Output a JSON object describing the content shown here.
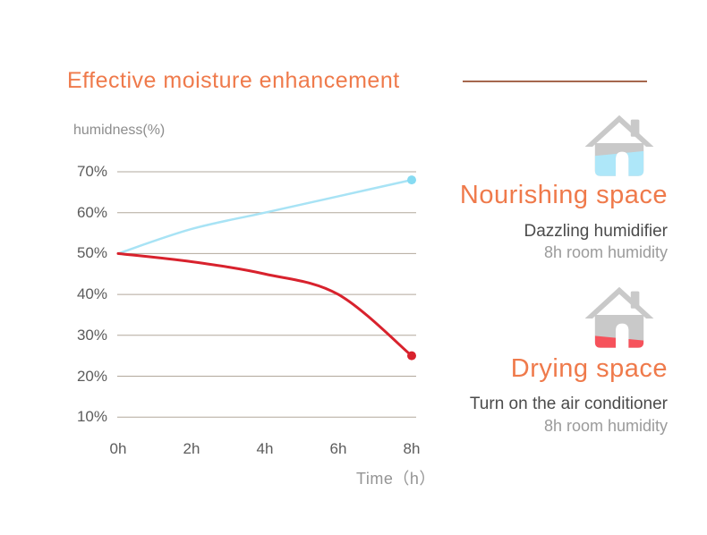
{
  "title": "Effective moisture enhancement",
  "chart_data": {
    "type": "line",
    "x": [
      0,
      2,
      4,
      6,
      8
    ],
    "x_tick_labels": [
      "0h",
      "2h",
      "4h",
      "6h",
      "8h"
    ],
    "xlabel": "Time（h）",
    "ylabel": "humidness(%)",
    "y_ticks": [
      70,
      60,
      50,
      40,
      30,
      20,
      10
    ],
    "y_tick_labels": [
      "70%",
      "60%",
      "50%",
      "40%",
      "30%",
      "20%",
      "10%"
    ],
    "ylim": [
      10,
      70
    ],
    "grid": true,
    "legend": "none",
    "series": [
      {
        "name": "Nourishing space (Dazzling humidifier)",
        "values": [
          50,
          56,
          60,
          64,
          68
        ],
        "color": "#a8e3f5",
        "dot_color": "#86dbf2",
        "end_marker": true
      },
      {
        "name": "Drying space (air conditioner)",
        "values": [
          50,
          48,
          45,
          40,
          25
        ],
        "color": "#d8222d",
        "dot_color": "#d8222d",
        "end_marker": true
      }
    ]
  },
  "panels": {
    "nourishing": {
      "heading": "Nourishing space",
      "line1": "Dazzling humidifier",
      "line2": "8h room humidity"
    },
    "drying": {
      "heading": "Drying space",
      "line1": "Turn on the air conditioner",
      "line2": "8h room humidity"
    }
  },
  "colors": {
    "title_orange": "#ef7a4b",
    "title_rule": "#a5674d",
    "gridline": "#b2a89c",
    "tick_text": "#5c5c5c",
    "axis_title_text": "#8d8d8d",
    "house_gray": "#c9c9c9",
    "house_water_blue": "#aee7f9",
    "house_water_red": "#f6525b"
  }
}
